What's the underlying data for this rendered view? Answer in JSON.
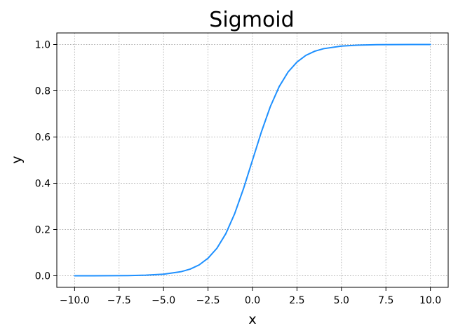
{
  "chart_data": {
    "type": "line",
    "title": "Sigmoid",
    "xlabel": "x",
    "ylabel": "y",
    "xlim": [
      -11,
      11
    ],
    "ylim": [
      -0.05,
      1.05
    ],
    "x_ticks": [
      -10.0,
      -7.5,
      -5.0,
      -2.5,
      0.0,
      2.5,
      5.0,
      7.5,
      10.0
    ],
    "x_tick_labels": [
      "−10.0",
      "−7.5",
      "−5.0",
      "−2.5",
      "0.0",
      "2.5",
      "5.0",
      "7.5",
      "10.0"
    ],
    "y_ticks": [
      0.0,
      0.2,
      0.4,
      0.6,
      0.8,
      1.0
    ],
    "y_tick_labels": [
      "0.0",
      "0.2",
      "0.4",
      "0.6",
      "0.8",
      "1.0"
    ],
    "grid": true,
    "grid_style": "dotted",
    "series": [
      {
        "color": "#1e90ff",
        "x": [
          -10,
          -9,
          -8,
          -7,
          -6,
          -5,
          -4,
          -3.5,
          -3,
          -2.5,
          -2,
          -1.5,
          -1,
          -0.5,
          0,
          0.5,
          1,
          1.5,
          2,
          2.5,
          3,
          3.5,
          4,
          5,
          6,
          7,
          8,
          9,
          10
        ],
        "y": [
          5e-05,
          0.00012,
          0.00034,
          0.00091,
          0.00247,
          0.0067,
          0.018,
          0.029,
          0.047,
          0.076,
          0.119,
          0.182,
          0.269,
          0.378,
          0.5,
          0.622,
          0.731,
          0.818,
          0.881,
          0.924,
          0.953,
          0.971,
          0.982,
          0.9933,
          0.9975,
          0.9991,
          0.9997,
          0.9999,
          0.99995
        ]
      }
    ]
  }
}
